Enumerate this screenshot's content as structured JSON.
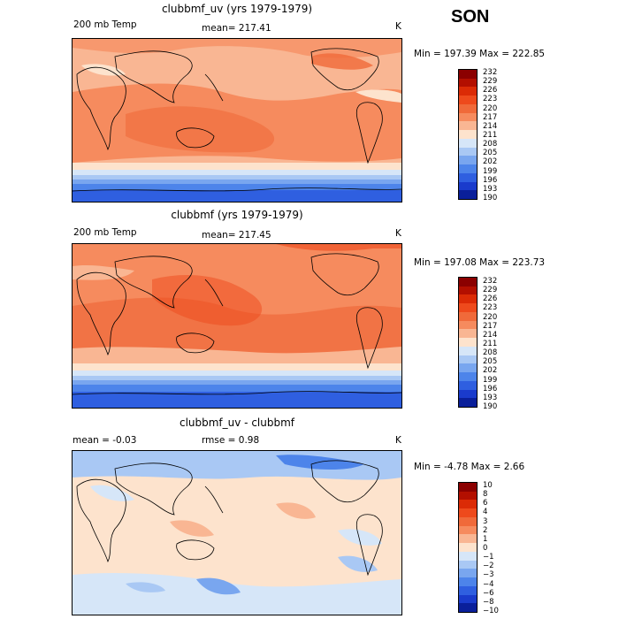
{
  "season": "SON",
  "panels": [
    {
      "title": "clubbmf_uv (yrs 1979-1979)",
      "left_label": "200 mb Temp",
      "mean_label": "mean= 217.41",
      "unit": "K",
      "minmax": "Min = 197.39 Max = 222.85",
      "colorbar_labels": [
        "232",
        "229",
        "226",
        "223",
        "220",
        "217",
        "214",
        "211",
        "208",
        "205",
        "202",
        "199",
        "196",
        "193",
        "190"
      ],
      "colorbar_colors": [
        "#8b0000",
        "#b30f00",
        "#db2b06",
        "#ee4a1c",
        "#f06a3a",
        "#f68b5e",
        "#f9b693",
        "#fde3cd",
        "#d6e6f8",
        "#a9c8f4",
        "#79a6ef",
        "#4d84ea",
        "#2f5fe0",
        "#1a3bcc",
        "#0a1f9a"
      ]
    },
    {
      "title": "clubbmf (yrs 1979-1979)",
      "left_label": "200 mb Temp",
      "mean_label": "mean= 217.45",
      "unit": "K",
      "minmax": "Min = 197.08 Max = 223.73",
      "colorbar_labels": [
        "232",
        "229",
        "226",
        "223",
        "220",
        "217",
        "214",
        "211",
        "208",
        "205",
        "202",
        "199",
        "196",
        "193",
        "190"
      ],
      "colorbar_colors": [
        "#8b0000",
        "#b30f00",
        "#db2b06",
        "#ee4a1c",
        "#f06a3a",
        "#f68b5e",
        "#f9b693",
        "#fde3cd",
        "#d6e6f8",
        "#a9c8f4",
        "#79a6ef",
        "#4d84ea",
        "#2f5fe0",
        "#1a3bcc",
        "#0a1f9a"
      ]
    },
    {
      "title": "clubbmf_uv - clubbmf",
      "left_label": "mean =   -0.03",
      "mean_label": "rmse =    0.98",
      "unit": "K",
      "minmax": "Min =  -4.78 Max =   2.66",
      "colorbar_labels": [
        "10",
        "8",
        "6",
        "4",
        "3",
        "2",
        "1",
        "0",
        "−1",
        "−2",
        "−3",
        "−4",
        "−6",
        "−8",
        "−10"
      ],
      "colorbar_colors": [
        "#8b0000",
        "#b30f00",
        "#db2b06",
        "#ee4a1c",
        "#f06a3a",
        "#f68b5e",
        "#f9b693",
        "#fde3cd",
        "#d6e6f8",
        "#a9c8f4",
        "#79a6ef",
        "#4d84ea",
        "#2f5fe0",
        "#1a3bcc",
        "#0a1f9a"
      ]
    }
  ]
}
